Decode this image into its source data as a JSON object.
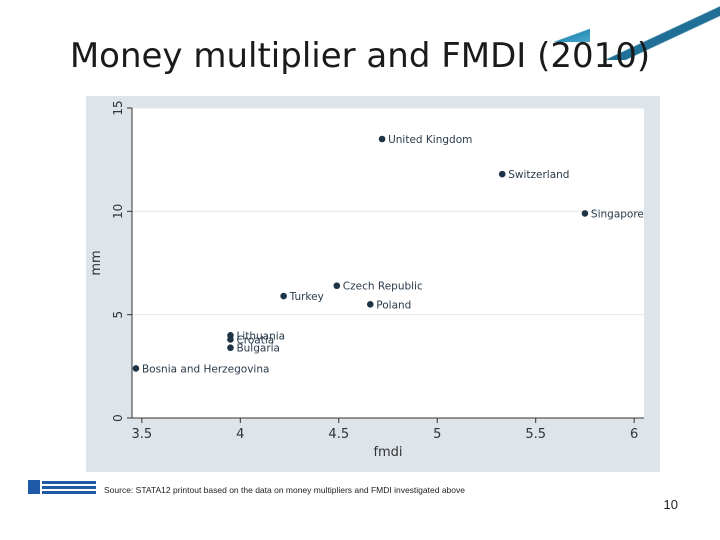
{
  "slide": {
    "title": "Money multiplier and FMDI (2010)",
    "source": "Source: STATA12 printout based on the data on money multipliers and FMDI investigated above",
    "page_number": "10"
  },
  "colors": {
    "point": "#1f3347",
    "plot_bg": "#ffffff",
    "outer_bg": "#dde4ea",
    "grid": "#dfe6ec",
    "accent": "#2c8fb8"
  },
  "chart_data": {
    "type": "scatter",
    "xlabel": "fmdi",
    "ylabel": "mm",
    "xlim": [
      3.45,
      6.05
    ],
    "ylim": [
      0,
      15
    ],
    "xticks": [
      "3.5",
      "4",
      "4.5",
      "5",
      "5.5",
      "6"
    ],
    "yticks": [
      "0",
      "5",
      "10",
      "15"
    ],
    "grid": true,
    "points": [
      {
        "label": "United Kingdom",
        "x": 4.72,
        "y": 13.5
      },
      {
        "label": "Switzerland",
        "x": 5.33,
        "y": 11.8
      },
      {
        "label": "Singapore",
        "x": 5.75,
        "y": 9.9
      },
      {
        "label": "Czech Republic",
        "x": 4.49,
        "y": 6.4
      },
      {
        "label": "Turkey",
        "x": 4.22,
        "y": 5.9
      },
      {
        "label": "Poland",
        "x": 4.66,
        "y": 5.5
      },
      {
        "label": "Lithuania",
        "x": 3.95,
        "y": 4.0
      },
      {
        "label": "Croatia",
        "x": 3.95,
        "y": 3.8
      },
      {
        "label": "Bulgaria",
        "x": 3.95,
        "y": 3.4
      },
      {
        "label": "Bosnia and Herzegovina",
        "x": 3.47,
        "y": 2.4
      }
    ]
  }
}
